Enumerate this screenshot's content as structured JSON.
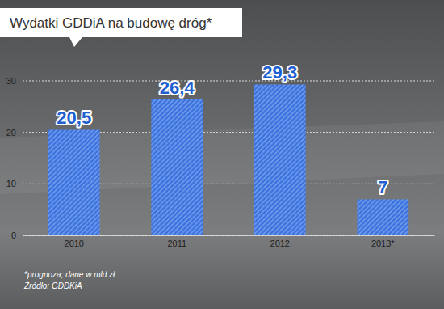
{
  "chart_data": {
    "type": "bar",
    "title": "Wydatki GDDiA na budowę dróg*",
    "categories": [
      "2010",
      "2011",
      "2012",
      "2013*"
    ],
    "values": [
      20.5,
      26.4,
      29.3,
      7
    ],
    "value_labels": [
      "20,5",
      "26,4",
      "29,3",
      "7"
    ],
    "color": "#3b72de",
    "ylim": [
      0,
      30
    ],
    "yticks": [
      0,
      10,
      20,
      30
    ],
    "grid": true,
    "data_labels": true,
    "footnote": "*prognoza; dane w mld zł",
    "source": "Źródło: GDDKiA"
  }
}
